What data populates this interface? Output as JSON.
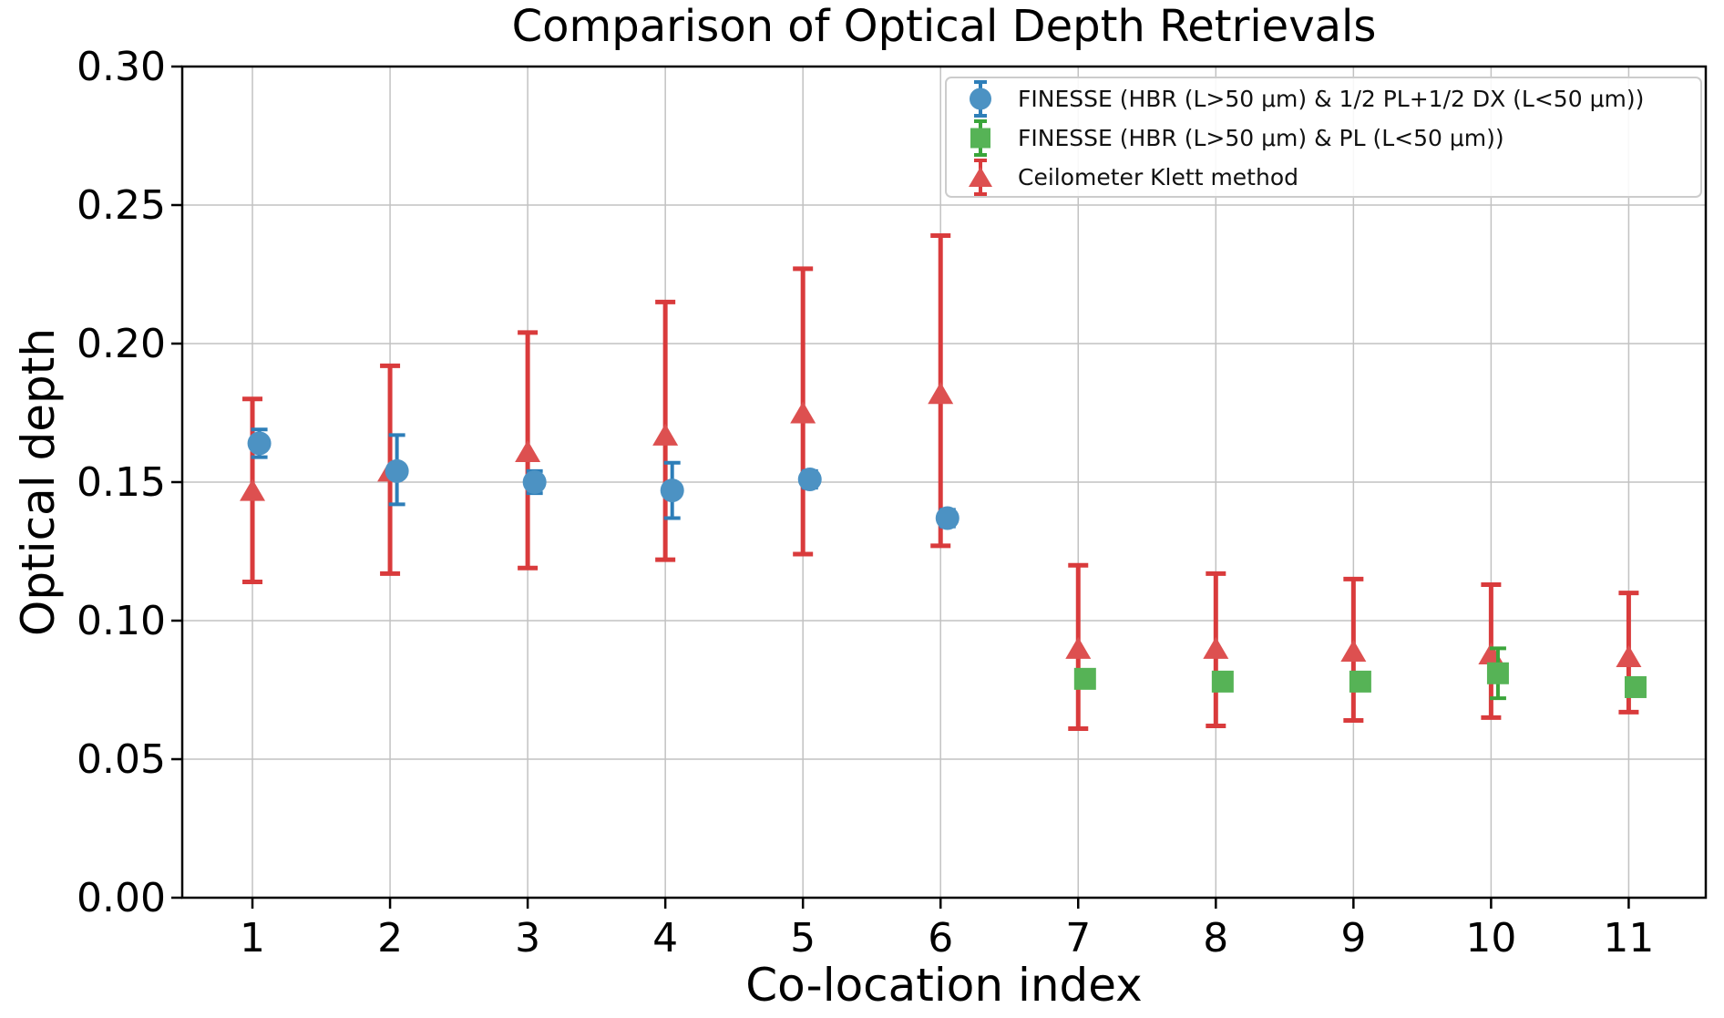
{
  "figure": {
    "background": "#ffffff",
    "spine_color": "#000000",
    "tick_label_color": "#000000"
  },
  "chart_data": {
    "type": "scatter",
    "title": "Comparison of Optical Depth Retrievals",
    "xlabel": "Co-location index",
    "ylabel": "Optical depth",
    "xlim": [
      0.49,
      11.56
    ],
    "ylim": [
      0.0,
      0.3
    ],
    "xticks": [
      1,
      2,
      3,
      4,
      5,
      6,
      7,
      8,
      9,
      10,
      11
    ],
    "yticks": [
      0.0,
      0.05,
      0.1,
      0.15,
      0.2,
      0.25,
      0.3
    ],
    "ytick_decimals": 2,
    "grid": true,
    "grid_color": "#c2c2c2",
    "legend_position": "upper right",
    "series": [
      {
        "name": "FINESSE (HBR (L>50 μm) & 1/2 PL+1/2 DX (L<50 μm))",
        "marker": "circle",
        "marker_color": "#4c92c3",
        "bar_color": "#2e7eb8",
        "x_offset": 0.05,
        "z": 1,
        "points": [
          {
            "x": 1,
            "y": 0.164,
            "lo": 0.159,
            "hi": 0.169
          },
          {
            "x": 2,
            "y": 0.154,
            "lo": 0.142,
            "hi": 0.167
          },
          {
            "x": 3,
            "y": 0.15,
            "lo": 0.146,
            "hi": 0.154
          },
          {
            "x": 4,
            "y": 0.147,
            "lo": 0.137,
            "hi": 0.157
          },
          {
            "x": 5,
            "y": 0.151,
            "lo": 0.148,
            "hi": 0.154
          },
          {
            "x": 6,
            "y": 0.137,
            "lo": 0.134,
            "hi": 0.14
          }
        ]
      },
      {
        "name": "FINESSE (HBR (L>50 μm) & PL (L<50 μm))",
        "marker": "square",
        "marker_color": "#56b356",
        "bar_color": "#3aa53a",
        "x_offset": 0.05,
        "z": 2,
        "points": [
          {
            "x": 7,
            "y": 0.079,
            "lo": 0.077,
            "hi": 0.081
          },
          {
            "x": 8,
            "y": 0.078,
            "lo": 0.075,
            "hi": 0.081
          },
          {
            "x": 9,
            "y": 0.078,
            "lo": 0.075,
            "hi": 0.081
          },
          {
            "x": 10,
            "y": 0.081,
            "lo": 0.072,
            "hi": 0.09
          },
          {
            "x": 11,
            "y": 0.076,
            "lo": 0.073,
            "hi": 0.079
          }
        ]
      },
      {
        "name": "Ceilometer Klett method",
        "marker": "triangle",
        "marker_color": "#dd5050",
        "bar_color": "#d93b3c",
        "x_offset": 0,
        "z": 0,
        "points": [
          {
            "x": 1,
            "y": 0.147,
            "lo": 0.114,
            "hi": 0.18
          },
          {
            "x": 2,
            "y": 0.154,
            "lo": 0.117,
            "hi": 0.192
          },
          {
            "x": 3,
            "y": 0.161,
            "lo": 0.119,
            "hi": 0.204
          },
          {
            "x": 4,
            "y": 0.167,
            "lo": 0.122,
            "hi": 0.215
          },
          {
            "x": 5,
            "y": 0.175,
            "lo": 0.124,
            "hi": 0.227
          },
          {
            "x": 6,
            "y": 0.182,
            "lo": 0.127,
            "hi": 0.239
          },
          {
            "x": 7,
            "y": 0.09,
            "lo": 0.061,
            "hi": 0.12
          },
          {
            "x": 8,
            "y": 0.09,
            "lo": 0.062,
            "hi": 0.117
          },
          {
            "x": 9,
            "y": 0.089,
            "lo": 0.064,
            "hi": 0.115
          },
          {
            "x": 10,
            "y": 0.088,
            "lo": 0.065,
            "hi": 0.113
          },
          {
            "x": 11,
            "y": 0.087,
            "lo": 0.067,
            "hi": 0.11
          }
        ]
      }
    ]
  }
}
